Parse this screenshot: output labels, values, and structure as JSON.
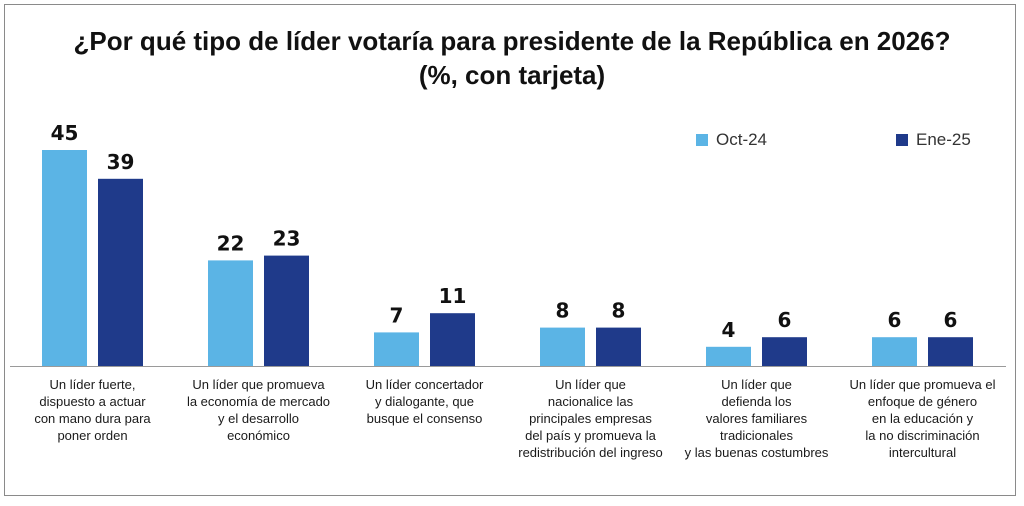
{
  "chart_data": {
    "type": "bar",
    "title": "¿Por qué tipo de líder votaría para presidente de la República en 2026?",
    "subtitle": "(%, con tarjeta)",
    "categories": [
      "Un líder fuerte,\ndispuesto a actuar\ncon mano dura para\nponer orden",
      "Un líder que promueva\nla economía de mercado\ny el desarrollo\neconómico",
      "Un líder concertador\ny dialogante, que\nbusque el consenso",
      "Un líder que\nnacionalice las\nprincipales empresas\ndel país y promueva la\nredistribución del ingreso",
      "Un líder que\ndefienda los\nvalores familiares\ntradicionales\ny las buenas costumbres",
      "Un líder que promueva el\nenfoque de género\nen la educación y\nla no discriminación\nintercultural"
    ],
    "series": [
      {
        "name": "Oct-24",
        "color": "#5bb4e5",
        "values": [
          45,
          22,
          7,
          8,
          4,
          6
        ]
      },
      {
        "name": "Ene-25",
        "color": "#1f3a8a",
        "values": [
          39,
          23,
          11,
          8,
          6,
          6
        ]
      }
    ],
    "ylim": [
      0,
      50
    ],
    "grid": false,
    "legend_position": "top-right"
  }
}
